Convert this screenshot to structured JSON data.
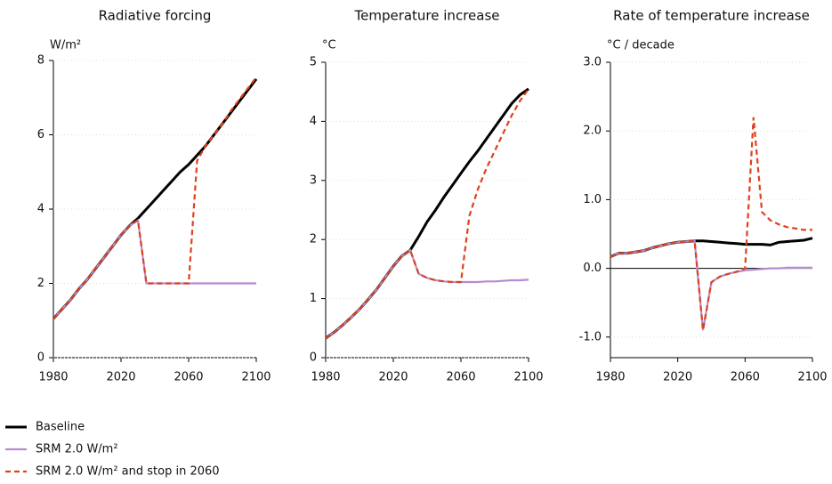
{
  "chart_data": [
    {
      "type": "line",
      "title": "Radiative forcing",
      "y_label": "W/m²",
      "x": [
        1980,
        1985,
        1990,
        1995,
        2000,
        2005,
        2010,
        2015,
        2020,
        2025,
        2030,
        2035,
        2040,
        2045,
        2050,
        2055,
        2060,
        2065,
        2070,
        2075,
        2080,
        2085,
        2090,
        2095,
        2100
      ],
      "xlim": [
        1980,
        2100
      ],
      "xticks": [
        1980,
        2020,
        2060,
        2100
      ],
      "ylim": [
        0,
        8
      ],
      "yticks": [
        0,
        2,
        4,
        6,
        8
      ],
      "series": [
        {
          "name": "Baseline",
          "color": "#000000",
          "values": [
            1.05,
            1.3,
            1.55,
            1.85,
            2.1,
            2.4,
            2.7,
            3.0,
            3.3,
            3.55,
            3.75,
            4.0,
            4.25,
            4.5,
            4.75,
            5.0,
            5.2,
            5.45,
            5.7,
            6.0,
            6.3,
            6.6,
            6.9,
            7.2,
            7.5
          ]
        },
        {
          "name": "SRM 2.0 W/m²",
          "color": "#b58ccf",
          "values": [
            1.05,
            1.3,
            1.55,
            1.85,
            2.1,
            2.4,
            2.7,
            3.0,
            3.3,
            3.55,
            3.7,
            2.0,
            2.0,
            2.0,
            2.0,
            2.0,
            2.0,
            2.0,
            2.0,
            2.0,
            2.0,
            2.0,
            2.0,
            2.0,
            2.0
          ]
        },
        {
          "name": "SRM 2.0 W/m² and stop in 2060",
          "color": "#e0401c",
          "dash": true,
          "values": [
            1.05,
            1.3,
            1.55,
            1.85,
            2.1,
            2.4,
            2.7,
            3.0,
            3.3,
            3.55,
            3.7,
            2.0,
            2.0,
            2.0,
            2.0,
            2.0,
            2.0,
            5.3,
            5.7,
            6.0,
            6.3,
            6.65,
            6.95,
            7.25,
            7.55
          ]
        }
      ]
    },
    {
      "type": "line",
      "title": "Temperature increase",
      "y_label": "°C",
      "x": [
        1980,
        1985,
        1990,
        1995,
        2000,
        2005,
        2010,
        2015,
        2020,
        2025,
        2030,
        2035,
        2040,
        2045,
        2050,
        2055,
        2060,
        2065,
        2070,
        2075,
        2080,
        2085,
        2090,
        2095,
        2100
      ],
      "xlim": [
        1980,
        2100
      ],
      "xticks": [
        1980,
        2020,
        2060,
        2100
      ],
      "ylim": [
        0,
        5
      ],
      "yticks": [
        0,
        1,
        2,
        3,
        4,
        5
      ],
      "series": [
        {
          "color": "#000000",
          "values": [
            0.33,
            0.43,
            0.55,
            0.68,
            0.82,
            0.98,
            1.15,
            1.35,
            1.55,
            1.72,
            1.82,
            2.05,
            2.3,
            2.5,
            2.72,
            2.92,
            3.12,
            3.32,
            3.5,
            3.7,
            3.9,
            4.1,
            4.3,
            4.45,
            4.55
          ]
        },
        {
          "color": "#b58ccf",
          "values": [
            0.33,
            0.43,
            0.55,
            0.68,
            0.82,
            0.98,
            1.15,
            1.35,
            1.55,
            1.72,
            1.82,
            1.42,
            1.35,
            1.31,
            1.29,
            1.28,
            1.28,
            1.28,
            1.28,
            1.29,
            1.29,
            1.3,
            1.31,
            1.31,
            1.32
          ]
        },
        {
          "color": "#e0401c",
          "dash": true,
          "values": [
            0.33,
            0.43,
            0.55,
            0.68,
            0.82,
            0.98,
            1.15,
            1.35,
            1.55,
            1.72,
            1.82,
            1.42,
            1.35,
            1.31,
            1.29,
            1.28,
            1.28,
            2.4,
            2.85,
            3.2,
            3.5,
            3.8,
            4.1,
            4.35,
            4.55
          ]
        }
      ]
    },
    {
      "type": "line",
      "title": "Rate of temperature increase",
      "y_label": "°C / decade",
      "x": [
        1980,
        1985,
        1990,
        1995,
        2000,
        2005,
        2010,
        2015,
        2020,
        2025,
        2030,
        2035,
        2040,
        2045,
        2050,
        2055,
        2060,
        2065,
        2070,
        2075,
        2080,
        2085,
        2090,
        2095,
        2100
      ],
      "xlim": [
        1980,
        2100
      ],
      "xticks": [
        1980,
        2020,
        2060,
        2100
      ],
      "ylim": [
        -1.3,
        3.0
      ],
      "yticks": [
        {
          "value": -1,
          "label": "-1.0"
        },
        {
          "value": 0,
          "label": "0.0"
        },
        {
          "value": 1,
          "label": "1.0"
        },
        {
          "value": 2,
          "label": "2.0"
        },
        {
          "value": 3,
          "label": "3.0"
        }
      ],
      "zero_line": true,
      "series": [
        {
          "color": "#000000",
          "values": [
            0.17,
            0.22,
            0.22,
            0.24,
            0.26,
            0.3,
            0.33,
            0.36,
            0.38,
            0.39,
            0.4,
            0.4,
            0.39,
            0.38,
            0.37,
            0.36,
            0.35,
            0.35,
            0.35,
            0.34,
            0.38,
            0.39,
            0.4,
            0.41,
            0.44
          ]
        },
        {
          "color": "#b58ccf",
          "values": [
            0.17,
            0.22,
            0.22,
            0.24,
            0.26,
            0.3,
            0.33,
            0.36,
            0.38,
            0.39,
            0.4,
            -0.9,
            -0.2,
            -0.12,
            -0.08,
            -0.05,
            -0.03,
            -0.02,
            -0.01,
            0.0,
            0.0,
            0.01,
            0.01,
            0.01,
            0.01
          ]
        },
        {
          "color": "#e0401c",
          "dash": true,
          "values": [
            0.17,
            0.22,
            0.22,
            0.24,
            0.26,
            0.3,
            0.33,
            0.36,
            0.38,
            0.39,
            0.4,
            -0.9,
            -0.2,
            -0.12,
            -0.08,
            -0.05,
            0.0,
            2.2,
            0.82,
            0.7,
            0.64,
            0.6,
            0.58,
            0.56,
            0.56
          ]
        }
      ]
    }
  ]
}
